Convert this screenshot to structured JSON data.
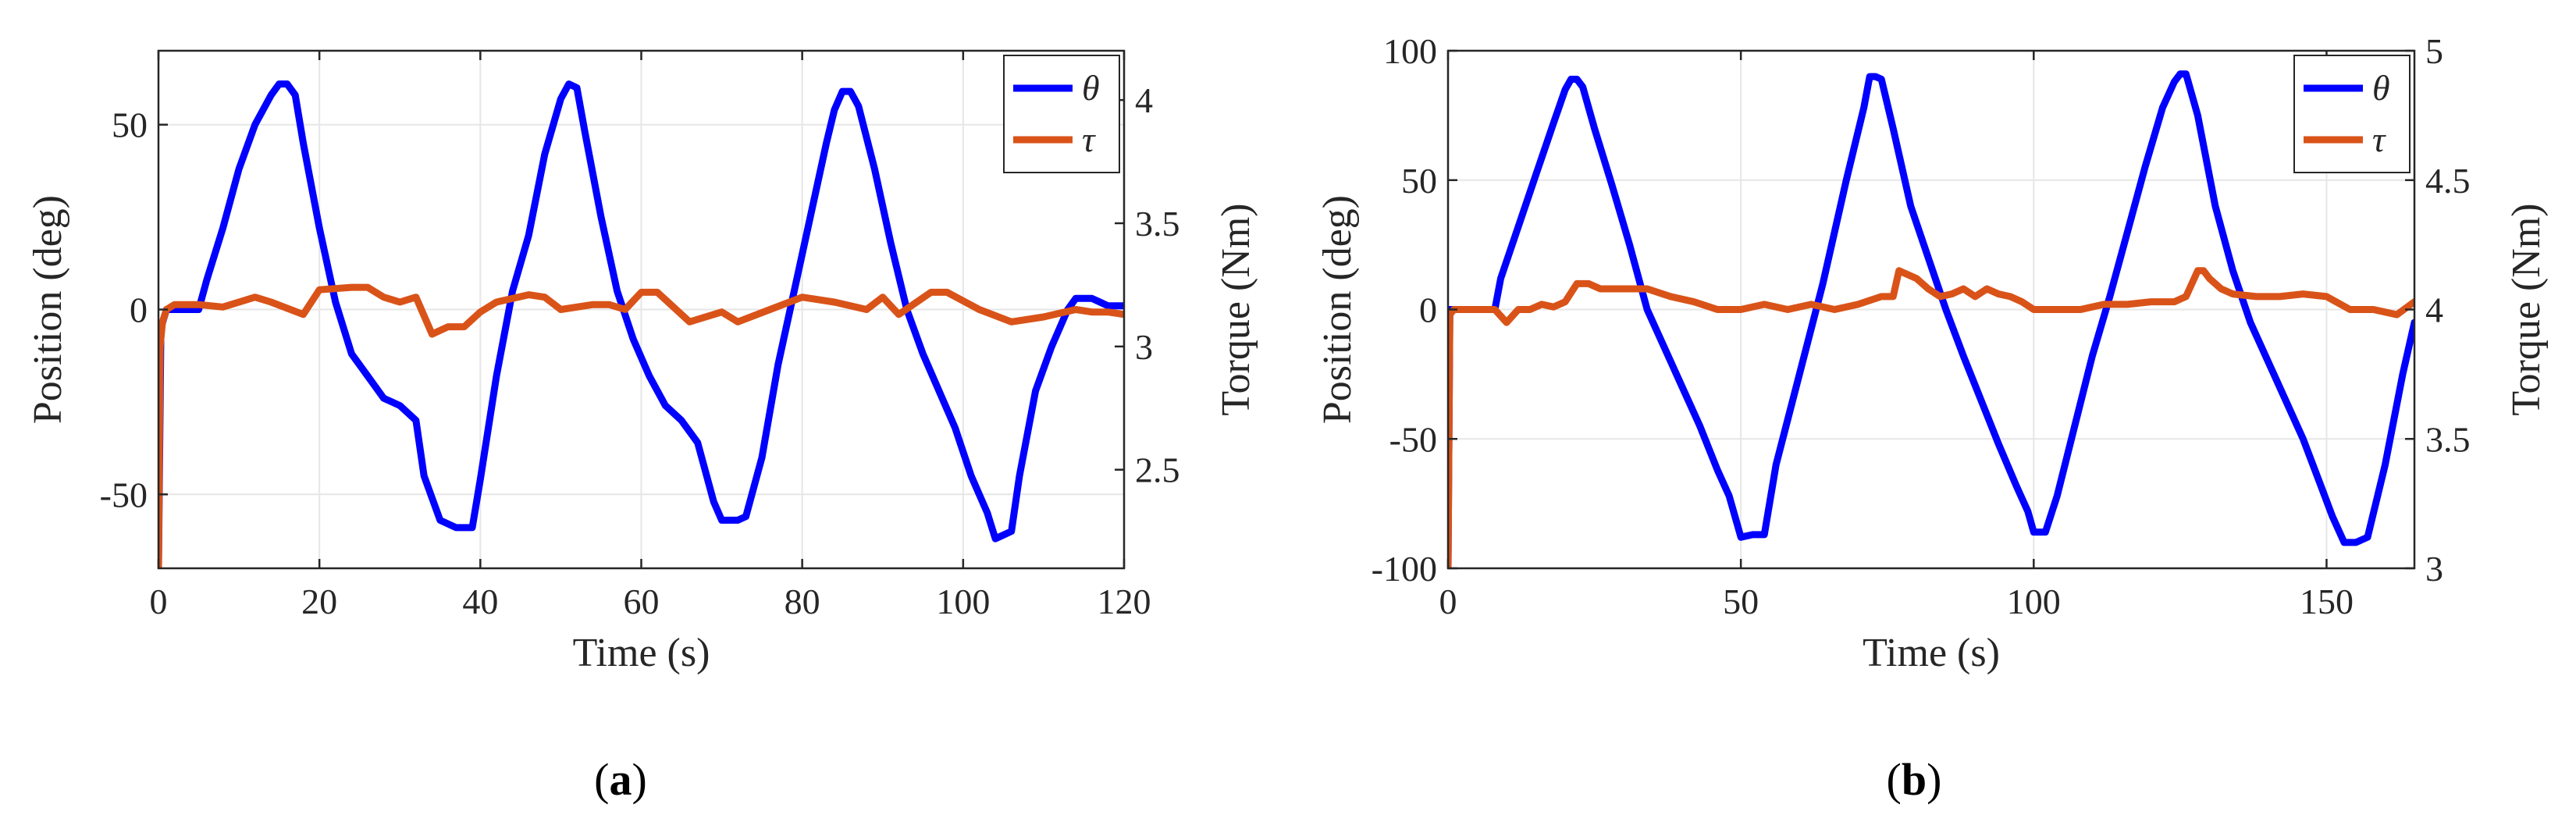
{
  "chart_data": [
    {
      "type": "line",
      "panel_label": "a",
      "xlabel": "Time (s)",
      "ylabel_left": "Position (deg)",
      "ylabel_right": "Torque (Nm)",
      "xlim": [
        0,
        120
      ],
      "ylim_left": [
        -70,
        70
      ],
      "ylim_right": [
        2.1,
        4.2
      ],
      "xticks": [
        0,
        20,
        40,
        60,
        80,
        100,
        120
      ],
      "yticks_left": [
        -50,
        0,
        50
      ],
      "yticks_right": [
        2.5,
        3,
        3.5,
        4
      ],
      "grid": true,
      "legend": "top-right",
      "colors": {
        "theta": "#0000ff",
        "tau": "#d95319"
      },
      "series": [
        {
          "name": "θ",
          "axis": "left",
          "x": [
            0,
            0.3,
            1,
            2,
            4,
            5,
            6,
            8,
            10,
            12,
            14,
            15,
            16,
            17,
            18,
            20,
            22,
            24,
            26,
            28,
            30,
            32,
            33,
            35,
            37,
            39,
            40,
            42,
            44,
            46,
            48,
            50,
            51,
            52,
            53,
            55,
            57,
            59,
            61,
            63,
            65,
            67,
            69,
            70,
            71,
            72,
            73,
            75,
            77,
            79,
            81,
            83,
            84,
            85,
            86,
            87,
            89,
            91,
            93,
            95,
            97,
            99,
            101,
            103,
            104,
            105,
            106,
            107,
            109,
            111,
            113,
            114,
            115,
            116,
            117,
            118,
            119,
            120
          ],
          "y": [
            -70,
            -5,
            0,
            0,
            0,
            0,
            8,
            22,
            38,
            50,
            58,
            61,
            61,
            58,
            45,
            22,
            2,
            -12,
            -18,
            -24,
            -26,
            -30,
            -45,
            -57,
            -59,
            -59,
            -46,
            -18,
            5,
            20,
            42,
            57,
            61,
            60,
            48,
            25,
            5,
            -8,
            -18,
            -26,
            -30,
            -36,
            -52,
            -57,
            -57,
            -57,
            -56,
            -40,
            -15,
            5,
            25,
            45,
            54,
            59,
            59,
            55,
            38,
            18,
            0,
            -12,
            -22,
            -32,
            -45,
            -55,
            -62,
            -61,
            -60,
            -45,
            -22,
            -10,
            0,
            3,
            3,
            3,
            2,
            1,
            1,
            1
          ]
        },
        {
          "name": "τ",
          "axis": "right",
          "x": [
            0,
            0.2,
            0.5,
            1,
            2,
            5,
            8,
            12,
            14,
            18,
            20,
            24,
            26,
            28,
            30,
            32,
            34,
            36,
            38,
            40,
            42,
            46,
            48,
            50,
            54,
            56,
            58,
            60,
            62,
            64,
            66,
            70,
            72,
            76,
            80,
            84,
            88,
            90,
            92,
            96,
            98,
            102,
            106,
            110,
            114,
            116,
            118,
            120
          ],
          "y": [
            2.1,
            3.0,
            3.1,
            3.15,
            3.17,
            3.17,
            3.16,
            3.2,
            3.18,
            3.13,
            3.23,
            3.24,
            3.24,
            3.2,
            3.18,
            3.2,
            3.05,
            3.08,
            3.08,
            3.14,
            3.18,
            3.21,
            3.2,
            3.15,
            3.17,
            3.17,
            3.15,
            3.22,
            3.22,
            3.16,
            3.1,
            3.14,
            3.1,
            3.15,
            3.2,
            3.18,
            3.15,
            3.2,
            3.13,
            3.22,
            3.22,
            3.15,
            3.1,
            3.12,
            3.15,
            3.14,
            3.14,
            3.13
          ]
        }
      ]
    },
    {
      "type": "line",
      "panel_label": "b",
      "xlabel": "Time (s)",
      "ylabel_left": "Position (deg)",
      "ylabel_right": "Torque (Nm)",
      "xlim": [
        0,
        165
      ],
      "ylim_left": [
        -100,
        100
      ],
      "ylim_right": [
        3,
        5
      ],
      "xticks": [
        0,
        50,
        100,
        150
      ],
      "yticks_left": [
        -100,
        -50,
        0,
        50,
        100
      ],
      "yticks_right": [
        3,
        3.5,
        4,
        4.5,
        5
      ],
      "grid": true,
      "legend": "top-right",
      "colors": {
        "theta": "#0000ff",
        "tau": "#d95319"
      },
      "series": [
        {
          "name": "θ",
          "axis": "left",
          "x": [
            0,
            0.3,
            2,
            5,
            7,
            8,
            9,
            12,
            15,
            18,
            20,
            21,
            22,
            23,
            25,
            28,
            31,
            34,
            37,
            40,
            43,
            46,
            48,
            50,
            52,
            54,
            56,
            60,
            64,
            68,
            71,
            72,
            73,
            74,
            76,
            79,
            82,
            85,
            88,
            91,
            94,
            97,
            99,
            100,
            101,
            102,
            104,
            107,
            110,
            113,
            116,
            119,
            122,
            124,
            125,
            126,
            128,
            131,
            134,
            137,
            140,
            143,
            146,
            149,
            151,
            153,
            155,
            157,
            160,
            163,
            165
          ],
          "y": [
            -100,
            0,
            0,
            0,
            0,
            0,
            12,
            32,
            52,
            72,
            85,
            89,
            89,
            86,
            70,
            48,
            25,
            0,
            -15,
            -30,
            -45,
            -62,
            -72,
            -88,
            -87,
            -87,
            -60,
            -25,
            10,
            50,
            78,
            90,
            90,
            89,
            70,
            40,
            20,
            0,
            -18,
            -35,
            -52,
            -68,
            -78,
            -86,
            -86,
            -86,
            -72,
            -45,
            -18,
            5,
            30,
            55,
            78,
            88,
            91,
            91,
            75,
            40,
            15,
            -5,
            -20,
            -35,
            -50,
            -68,
            -80,
            -90,
            -90,
            -88,
            -60,
            -25,
            -5
          ]
        },
        {
          "name": "τ",
          "axis": "right",
          "x": [
            0,
            0.3,
            1,
            4,
            6,
            8,
            10,
            12,
            14,
            16,
            18,
            20,
            22,
            24,
            26,
            30,
            34,
            38,
            42,
            46,
            50,
            54,
            58,
            62,
            66,
            70,
            74,
            76,
            77,
            78,
            80,
            82,
            84,
            86,
            88,
            90,
            92,
            94,
            96,
            98,
            100,
            104,
            108,
            112,
            116,
            120,
            124,
            126,
            128,
            129,
            130,
            132,
            134,
            138,
            142,
            146,
            150,
            154,
            158,
            162,
            165
          ],
          "y": [
            3.0,
            3.98,
            4.0,
            4.0,
            4.0,
            4.0,
            3.95,
            4.0,
            4.0,
            4.02,
            4.01,
            4.03,
            4.1,
            4.1,
            4.08,
            4.08,
            4.08,
            4.05,
            4.03,
            4.0,
            4.0,
            4.02,
            4.0,
            4.02,
            4.0,
            4.02,
            4.05,
            4.05,
            4.15,
            4.14,
            4.12,
            4.08,
            4.05,
            4.06,
            4.08,
            4.05,
            4.08,
            4.06,
            4.05,
            4.03,
            4.0,
            4.0,
            4.0,
            4.02,
            4.02,
            4.03,
            4.03,
            4.05,
            4.15,
            4.15,
            4.12,
            4.08,
            4.06,
            4.05,
            4.05,
            4.06,
            4.05,
            4.0,
            4.0,
            3.98,
            4.03
          ]
        }
      ]
    }
  ]
}
